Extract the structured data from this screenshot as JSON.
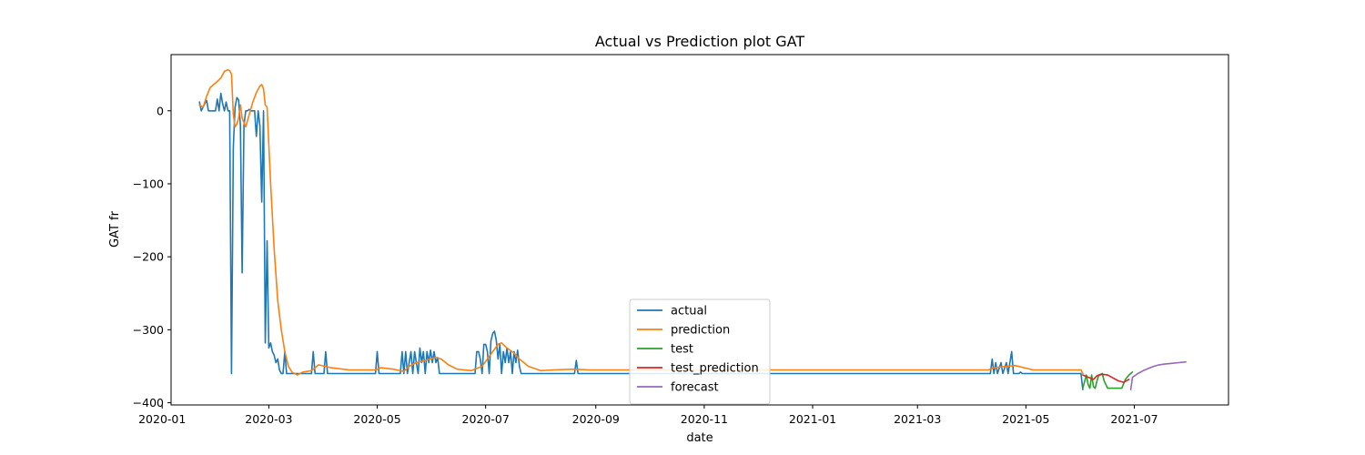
{
  "chart_data": {
    "type": "line",
    "title": "Actual vs Prediction plot GAT",
    "xlabel": "date",
    "ylabel": "GAT fr",
    "xlim": [
      "2020-01-06",
      "2021-08-23"
    ],
    "ylim": [
      -403,
      77
    ],
    "x_ticks": [
      "2020-01",
      "2020-03",
      "2020-05",
      "2020-07",
      "2020-09",
      "2020-11",
      "2021-01",
      "2021-03",
      "2021-05",
      "2021-07"
    ],
    "x_tick_dates": [
      "2020-01-01",
      "2020-03-01",
      "2020-05-01",
      "2020-07-01",
      "2020-09-01",
      "2020-11-01",
      "2021-01-01",
      "2021-03-01",
      "2021-05-01",
      "2021-07-01"
    ],
    "y_ticks": [
      0,
      -100,
      -200,
      -300,
      -400
    ],
    "y_tick_labels": [
      "0",
      "−100",
      "−200",
      "−300",
      "−400"
    ],
    "grid": false,
    "legend": "lower center",
    "series": [
      {
        "name": "actual",
        "color": "#1f77b4",
        "points": [
          [
            "2020-01-22",
            12
          ],
          [
            "2020-01-23",
            0
          ],
          [
            "2020-01-24",
            5
          ],
          [
            "2020-01-25",
            10
          ],
          [
            "2020-01-26",
            14
          ],
          [
            "2020-01-27",
            0
          ],
          [
            "2020-01-28",
            0
          ],
          [
            "2020-01-29",
            0
          ],
          [
            "2020-01-30",
            0
          ],
          [
            "2020-01-31",
            0
          ],
          [
            "2020-02-01",
            16
          ],
          [
            "2020-02-02",
            0
          ],
          [
            "2020-02-03",
            24
          ],
          [
            "2020-02-04",
            10
          ],
          [
            "2020-02-05",
            0
          ],
          [
            "2020-02-06",
            12
          ],
          [
            "2020-02-07",
            0
          ],
          [
            "2020-02-08",
            0
          ],
          [
            "2020-02-09",
            -360
          ],
          [
            "2020-02-10",
            -50
          ],
          [
            "2020-02-11",
            5
          ],
          [
            "2020-02-12",
            18
          ],
          [
            "2020-02-13",
            15
          ],
          [
            "2020-02-14",
            -20
          ],
          [
            "2020-02-15",
            -222
          ],
          [
            "2020-02-16",
            -20
          ],
          [
            "2020-02-17",
            0
          ],
          [
            "2020-02-18",
            0
          ],
          [
            "2020-02-19",
            2
          ],
          [
            "2020-02-20",
            0
          ],
          [
            "2020-02-21",
            0
          ],
          [
            "2020-02-22",
            0
          ],
          [
            "2020-02-23",
            -35
          ],
          [
            "2020-02-24",
            0
          ],
          [
            "2020-02-25",
            -20
          ],
          [
            "2020-02-26",
            -125
          ],
          [
            "2020-02-27",
            0
          ],
          [
            "2020-02-28",
            -318
          ],
          [
            "2020-02-29",
            -178
          ],
          [
            "2020-03-01",
            -325
          ],
          [
            "2020-03-02",
            -318
          ],
          [
            "2020-03-03",
            -330
          ],
          [
            "2020-03-04",
            -335
          ],
          [
            "2020-03-05",
            -345
          ],
          [
            "2020-03-06",
            -340
          ],
          [
            "2020-03-07",
            -355
          ],
          [
            "2020-03-08",
            -360
          ],
          [
            "2020-03-09",
            -360
          ],
          [
            "2020-03-10",
            -330
          ],
          [
            "2020-03-11",
            -360
          ],
          [
            "2020-03-25",
            -360
          ],
          [
            "2020-03-26",
            -330
          ],
          [
            "2020-03-27",
            -360
          ],
          [
            "2020-04-01",
            -360
          ],
          [
            "2020-04-02",
            -330
          ],
          [
            "2020-04-03",
            -360
          ],
          [
            "2020-04-30",
            -360
          ],
          [
            "2020-05-01",
            -330
          ],
          [
            "2020-05-02",
            -360
          ],
          [
            "2020-05-14",
            -360
          ],
          [
            "2020-05-15",
            -330
          ],
          [
            "2020-05-16",
            -360
          ],
          [
            "2020-05-17",
            -330
          ],
          [
            "2020-05-18",
            -360
          ],
          [
            "2020-05-20",
            -330
          ],
          [
            "2020-05-21",
            -360
          ],
          [
            "2020-05-22",
            -330
          ],
          [
            "2020-05-23",
            -345
          ],
          [
            "2020-05-24",
            -360
          ],
          [
            "2020-05-25",
            -325
          ],
          [
            "2020-05-26",
            -345
          ],
          [
            "2020-05-27",
            -330
          ],
          [
            "2020-05-28",
            -360
          ],
          [
            "2020-05-29",
            -330
          ],
          [
            "2020-05-30",
            -345
          ],
          [
            "2020-05-31",
            -328
          ],
          [
            "2020-06-01",
            -345
          ],
          [
            "2020-06-02",
            -330
          ],
          [
            "2020-06-03",
            -345
          ],
          [
            "2020-06-04",
            -338
          ],
          [
            "2020-06-05",
            -360
          ],
          [
            "2020-06-25",
            -360
          ],
          [
            "2020-06-26",
            -330
          ],
          [
            "2020-06-27",
            -330
          ],
          [
            "2020-06-28",
            -340
          ],
          [
            "2020-06-29",
            -360
          ],
          [
            "2020-06-30",
            -320
          ],
          [
            "2020-07-01",
            -320
          ],
          [
            "2020-07-02",
            -330
          ],
          [
            "2020-07-03",
            -360
          ],
          [
            "2020-07-04",
            -315
          ],
          [
            "2020-07-05",
            -305
          ],
          [
            "2020-07-06",
            -302
          ],
          [
            "2020-07-07",
            -315
          ],
          [
            "2020-07-08",
            -340
          ],
          [
            "2020-07-09",
            -320
          ],
          [
            "2020-07-10",
            -360
          ],
          [
            "2020-07-11",
            -330
          ],
          [
            "2020-07-12",
            -345
          ],
          [
            "2020-07-13",
            -325
          ],
          [
            "2020-07-14",
            -345
          ],
          [
            "2020-07-15",
            -330
          ],
          [
            "2020-07-16",
            -360
          ],
          [
            "2020-07-17",
            -330
          ],
          [
            "2020-07-18",
            -345
          ],
          [
            "2020-07-19",
            -328
          ],
          [
            "2020-07-20",
            -350
          ],
          [
            "2020-07-21",
            -360
          ],
          [
            "2020-08-20",
            -360
          ],
          [
            "2020-08-21",
            -342
          ],
          [
            "2020-08-22",
            -360
          ],
          [
            "2021-04-11",
            -360
          ],
          [
            "2021-04-12",
            -340
          ],
          [
            "2021-04-13",
            -360
          ],
          [
            "2021-04-14",
            -345
          ],
          [
            "2021-04-15",
            -360
          ],
          [
            "2021-04-17",
            -345
          ],
          [
            "2021-04-18",
            -360
          ],
          [
            "2021-04-20",
            -345
          ],
          [
            "2021-04-21",
            -360
          ],
          [
            "2021-04-22",
            -345
          ],
          [
            "2021-04-23",
            -330
          ],
          [
            "2021-04-24",
            -360
          ],
          [
            "2021-04-27",
            -360
          ],
          [
            "2021-04-28",
            -358
          ],
          [
            "2021-04-29",
            -360
          ],
          [
            "2021-06-01",
            -360
          ],
          [
            "2021-06-02",
            -382
          ]
        ]
      },
      {
        "name": "prediction",
        "color": "#ff7f0e",
        "points": [
          [
            "2020-01-22",
            8
          ],
          [
            "2020-01-24",
            5
          ],
          [
            "2020-01-26",
            20
          ],
          [
            "2020-01-28",
            32
          ],
          [
            "2020-01-31",
            38
          ],
          [
            "2020-02-03",
            45
          ],
          [
            "2020-02-05",
            54
          ],
          [
            "2020-02-07",
            56
          ],
          [
            "2020-02-08",
            55
          ],
          [
            "2020-02-09",
            50
          ],
          [
            "2020-02-10",
            -5
          ],
          [
            "2020-02-11",
            -22
          ],
          [
            "2020-02-12",
            -18
          ],
          [
            "2020-02-13",
            -10
          ],
          [
            "2020-02-14",
            8
          ],
          [
            "2020-02-15",
            -10
          ],
          [
            "2020-02-17",
            -22
          ],
          [
            "2020-02-19",
            -5
          ],
          [
            "2020-02-21",
            12
          ],
          [
            "2020-02-23",
            25
          ],
          [
            "2020-02-25",
            34
          ],
          [
            "2020-02-26",
            36
          ],
          [
            "2020-02-27",
            30
          ],
          [
            "2020-02-28",
            8
          ],
          [
            "2020-02-29",
            5
          ],
          [
            "2020-03-02",
            -100
          ],
          [
            "2020-03-04",
            -190
          ],
          [
            "2020-03-06",
            -260
          ],
          [
            "2020-03-08",
            -300
          ],
          [
            "2020-03-10",
            -330
          ],
          [
            "2020-03-12",
            -350
          ],
          [
            "2020-03-14",
            -358
          ],
          [
            "2020-03-17",
            -362
          ],
          [
            "2020-03-20",
            -358
          ],
          [
            "2020-03-25",
            -356
          ],
          [
            "2020-03-27",
            -352
          ],
          [
            "2020-03-29",
            -348
          ],
          [
            "2020-04-05",
            -352
          ],
          [
            "2020-04-15",
            -355
          ],
          [
            "2020-04-30",
            -355
          ],
          [
            "2020-05-03",
            -352
          ],
          [
            "2020-05-10",
            -354
          ],
          [
            "2020-05-16",
            -357
          ],
          [
            "2020-05-19",
            -350
          ],
          [
            "2020-05-23",
            -345
          ],
          [
            "2020-05-28",
            -342
          ],
          [
            "2020-06-03",
            -338
          ],
          [
            "2020-06-06",
            -340
          ],
          [
            "2020-06-10",
            -348
          ],
          [
            "2020-06-15",
            -354
          ],
          [
            "2020-06-23",
            -356
          ],
          [
            "2020-06-29",
            -350
          ],
          [
            "2020-07-02",
            -340
          ],
          [
            "2020-07-05",
            -330
          ],
          [
            "2020-07-08",
            -320
          ],
          [
            "2020-07-10",
            -318
          ],
          [
            "2020-07-13",
            -325
          ],
          [
            "2020-07-17",
            -332
          ],
          [
            "2020-07-20",
            -340
          ],
          [
            "2020-07-25",
            -350
          ],
          [
            "2020-08-01",
            -356
          ],
          [
            "2020-08-08",
            -355
          ],
          [
            "2020-08-20",
            -354
          ],
          [
            "2020-08-28",
            -355
          ],
          [
            "2020-09-15",
            -355
          ],
          [
            "2021-04-10",
            -355
          ],
          [
            "2021-04-13",
            -352
          ],
          [
            "2021-04-20",
            -350
          ],
          [
            "2021-04-25",
            -349
          ],
          [
            "2021-05-05",
            -355
          ],
          [
            "2021-05-15",
            -355
          ],
          [
            "2021-06-01",
            -355
          ],
          [
            "2021-06-02",
            -360
          ]
        ]
      },
      {
        "name": "test",
        "color": "#2ca02c",
        "points": [
          [
            "2021-06-02",
            -380
          ],
          [
            "2021-06-04",
            -362
          ],
          [
            "2021-06-05",
            -375
          ],
          [
            "2021-06-06",
            -380
          ],
          [
            "2021-06-07",
            -362
          ],
          [
            "2021-06-08",
            -378
          ],
          [
            "2021-06-09",
            -380
          ],
          [
            "2021-06-10",
            -370
          ],
          [
            "2021-06-11",
            -362
          ],
          [
            "2021-06-13",
            -360
          ],
          [
            "2021-06-14",
            -370
          ],
          [
            "2021-06-16",
            -380
          ],
          [
            "2021-06-20",
            -380
          ],
          [
            "2021-06-24",
            -380
          ],
          [
            "2021-06-26",
            -368
          ],
          [
            "2021-06-28",
            -362
          ],
          [
            "2021-06-30",
            -358
          ]
        ]
      },
      {
        "name": "test_prediction",
        "color": "#d62728",
        "points": [
          [
            "2021-06-02",
            -362
          ],
          [
            "2021-06-05",
            -365
          ],
          [
            "2021-06-08",
            -368
          ],
          [
            "2021-06-10",
            -363
          ],
          [
            "2021-06-13",
            -361
          ],
          [
            "2021-06-16",
            -362
          ],
          [
            "2021-06-19",
            -366
          ],
          [
            "2021-06-22",
            -370
          ],
          [
            "2021-06-25",
            -372
          ],
          [
            "2021-06-28",
            -368
          ]
        ]
      },
      {
        "name": "forecast",
        "color": "#9467bd",
        "points": [
          [
            "2021-06-29",
            -382
          ],
          [
            "2021-06-30",
            -365
          ],
          [
            "2021-07-03",
            -360
          ],
          [
            "2021-07-06",
            -356
          ],
          [
            "2021-07-09",
            -353
          ],
          [
            "2021-07-12",
            -350
          ],
          [
            "2021-07-15",
            -348
          ],
          [
            "2021-07-18",
            -347
          ],
          [
            "2021-07-22",
            -346
          ],
          [
            "2021-07-26",
            -345
          ],
          [
            "2021-07-30",
            -344
          ]
        ]
      }
    ]
  }
}
